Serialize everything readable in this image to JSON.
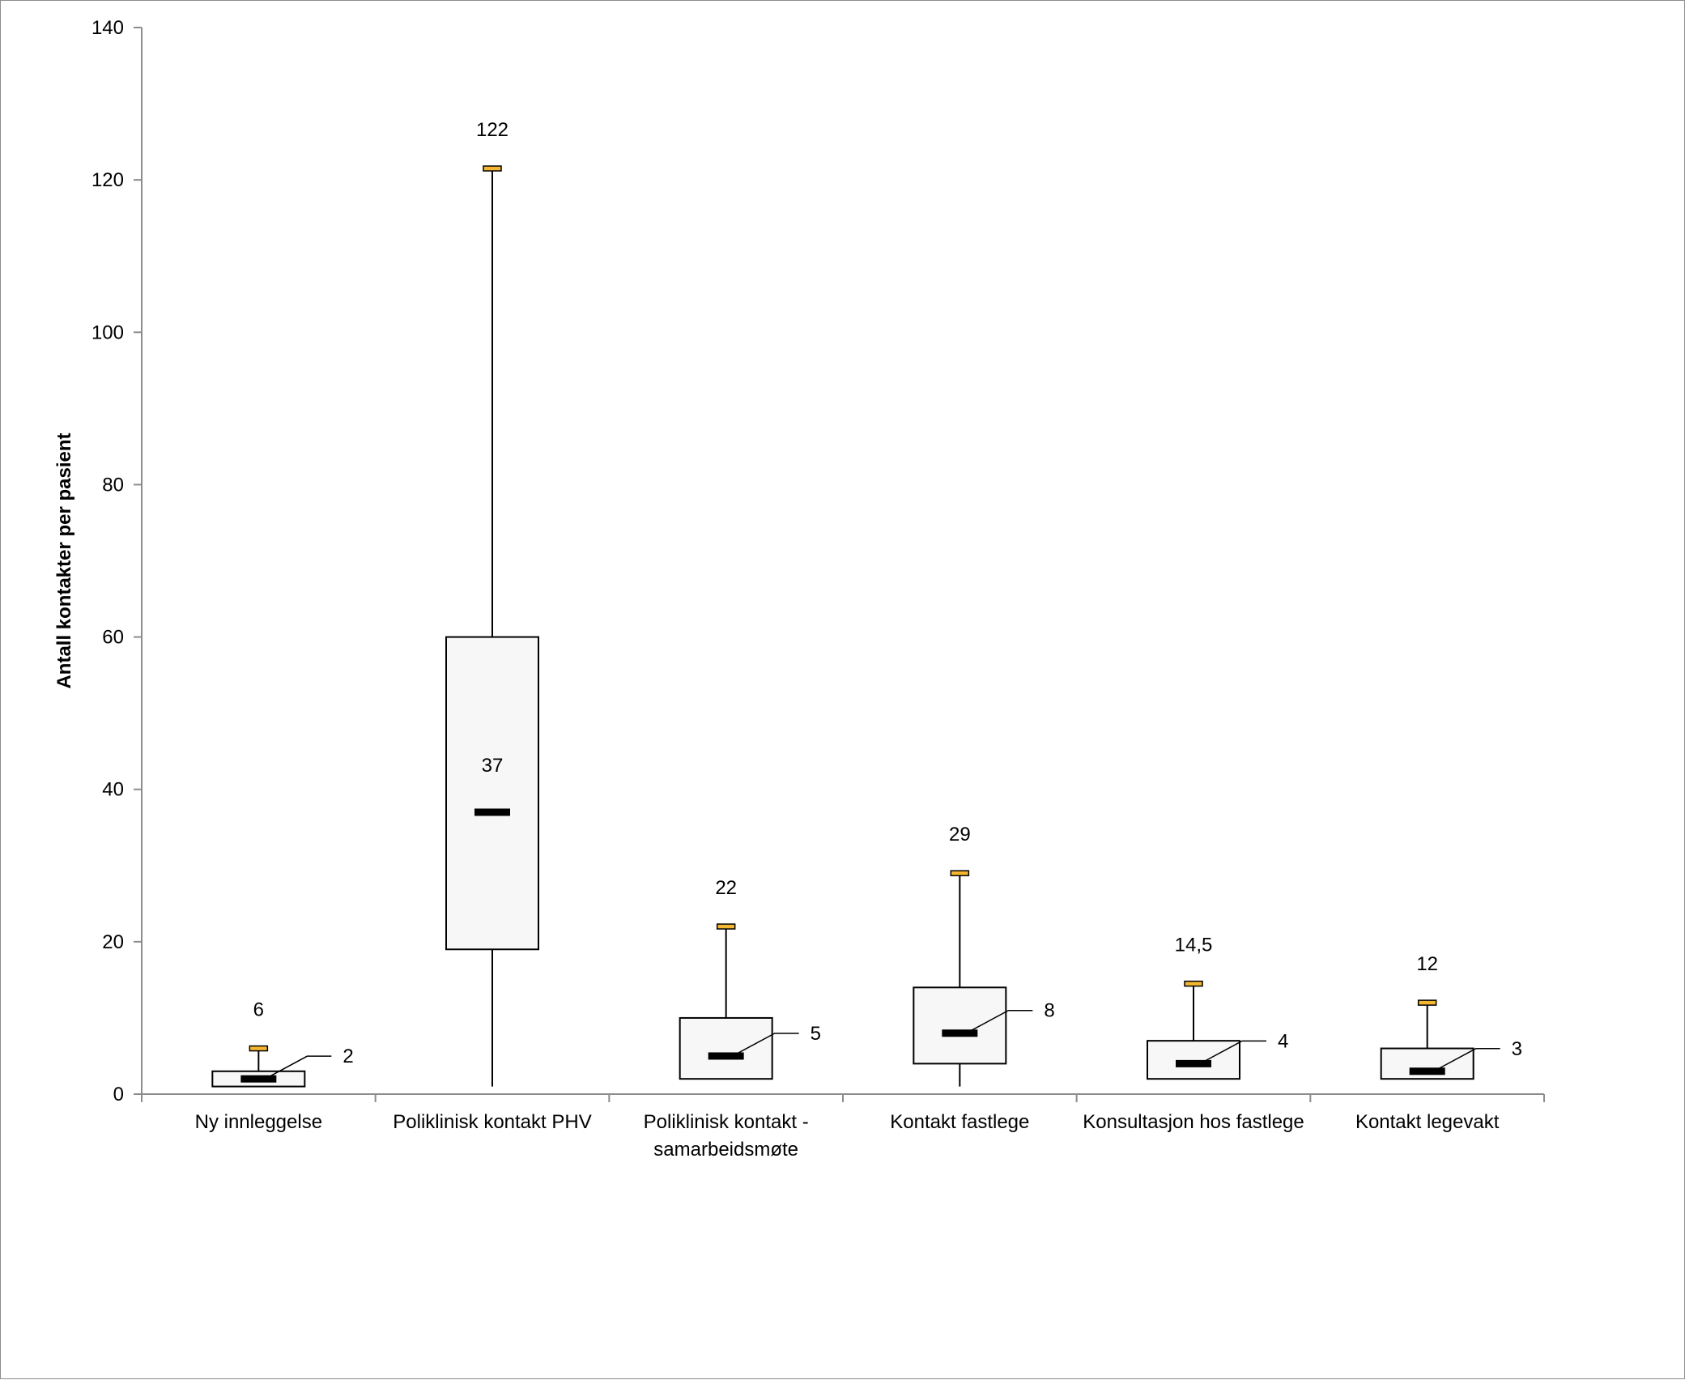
{
  "chart_data": {
    "type": "box",
    "title": "",
    "xlabel": "",
    "ylabel": "Antall kontakter per pasient",
    "ylim": [
      0,
      140
    ],
    "yticks": [
      0,
      20,
      40,
      60,
      80,
      100,
      120,
      140
    ],
    "grid": false,
    "categories": [
      [
        "Ny innleggelse"
      ],
      [
        "Poliklinisk kontakt PHV"
      ],
      [
        "Poliklinisk kontakt -",
        "samarbeidsmøte"
      ],
      [
        "Kontakt fastlege"
      ],
      [
        "Konsultasjon hos fastlege"
      ],
      [
        "Kontakt legevakt"
      ]
    ],
    "boxes": [
      {
        "min": 1,
        "q1": 1,
        "median": 2,
        "q3": 3,
        "max": 6,
        "median_label": "2",
        "max_label": "6"
      },
      {
        "min": 1,
        "q1": 19,
        "median": 37,
        "q3": 60,
        "max": 121.5,
        "median_label": "37",
        "max_label": "122"
      },
      {
        "min": 2,
        "q1": 2,
        "median": 5,
        "q3": 10,
        "max": 22,
        "median_label": "5",
        "max_label": "22"
      },
      {
        "min": 1,
        "q1": 4,
        "median": 8,
        "q3": 14,
        "max": 29,
        "median_label": "8",
        "max_label": "29"
      },
      {
        "min": 2,
        "q1": 2,
        "median": 4,
        "q3": 7,
        "max": 14.5,
        "median_label": "4",
        "max_label": "14,5"
      },
      {
        "min": 2,
        "q1": 2,
        "median": 3,
        "q3": 6,
        "max": 12,
        "median_label": "3",
        "max_label": "12"
      }
    ],
    "colors": {
      "box_fill": "#f7f7f7",
      "box_stroke": "#000000",
      "median": "#000000",
      "max_marker": "#f5b731",
      "axis": "#8c8c8c"
    }
  }
}
